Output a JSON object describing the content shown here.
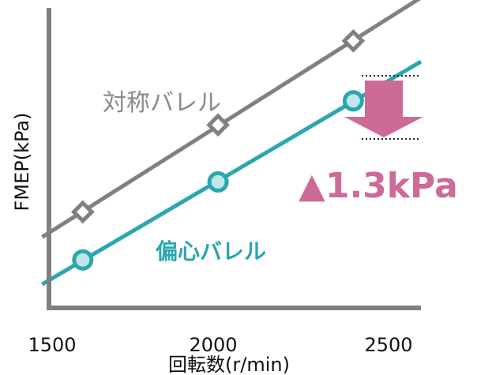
{
  "chart_data": {
    "type": "line",
    "xlabel": "回転数(r/min)",
    "ylabel": "FMEP(kPa)",
    "xticks": [
      1500,
      2000,
      2500
    ],
    "xlim": [
      1500,
      2600
    ],
    "ylim": [
      0,
      10
    ],
    "grid": false,
    "series": [
      {
        "name": "対称バレル",
        "color": "#808080",
        "marker": "diamond",
        "x": [
          1600,
          2000,
          2400
        ],
        "y": [
          3.2,
          6.1,
          8.9
        ]
      },
      {
        "name": "偏心バレル",
        "color": "#2aa6b0",
        "marker": "circle",
        "x": [
          1600,
          2000,
          2400
        ],
        "y": [
          1.6,
          4.2,
          6.9
        ]
      }
    ],
    "annotation": {
      "text": "▲1.3kPa",
      "color": "#cc6a98",
      "at_x": 2400
    }
  }
}
